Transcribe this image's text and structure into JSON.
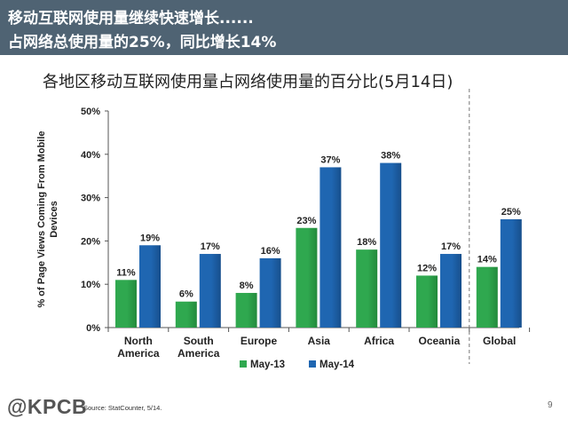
{
  "slide": {
    "headline_line1": "移动互联网使用量继续快速增长......",
    "headline_line2": "占网络总使用量的25%，同比增长14%",
    "logo": "@KPCB",
    "source": "Source: StatCounter, 5/14.",
    "page_number": "9"
  },
  "chart_data": {
    "type": "bar",
    "title": "各地区移动互联网使用量占网络使用量的百分比(5月14日)",
    "ylabel": "% of Page Views Coming From Mobile Devices",
    "ylabel_lines": [
      "% of Page Views Coming From Mobile",
      "Devices"
    ],
    "xlabel": "",
    "ylim": [
      0,
      50
    ],
    "yticks": [
      0,
      10,
      20,
      30,
      40,
      50
    ],
    "ytick_labels": [
      "0%",
      "10%",
      "20%",
      "30%",
      "40%",
      "50%"
    ],
    "categories": [
      "North America",
      "South America",
      "Europe",
      "Asia",
      "Africa",
      "Oceania",
      "Global"
    ],
    "category_labels": [
      [
        "North",
        "America"
      ],
      [
        "South",
        "America"
      ],
      [
        "Europe"
      ],
      [
        "Asia"
      ],
      [
        "Africa"
      ],
      [
        "Oceania"
      ],
      [
        "Global"
      ]
    ],
    "series": [
      {
        "name": "May-13",
        "values": [
          11,
          6,
          8,
          23,
          18,
          12,
          14
        ],
        "labels": [
          "11%",
          "6%",
          "8%",
          "23%",
          "18%",
          "12%",
          "14%"
        ],
        "color": "#2fa84f"
      },
      {
        "name": "May-14",
        "values": [
          19,
          17,
          16,
          37,
          38,
          17,
          25
        ],
        "labels": [
          "19%",
          "17%",
          "16%",
          "37%",
          "38%",
          "17%",
          "25%"
        ],
        "color": "#1f66b1"
      }
    ],
    "separator_before": "Global",
    "grid": false,
    "legend_position": "bottom"
  }
}
